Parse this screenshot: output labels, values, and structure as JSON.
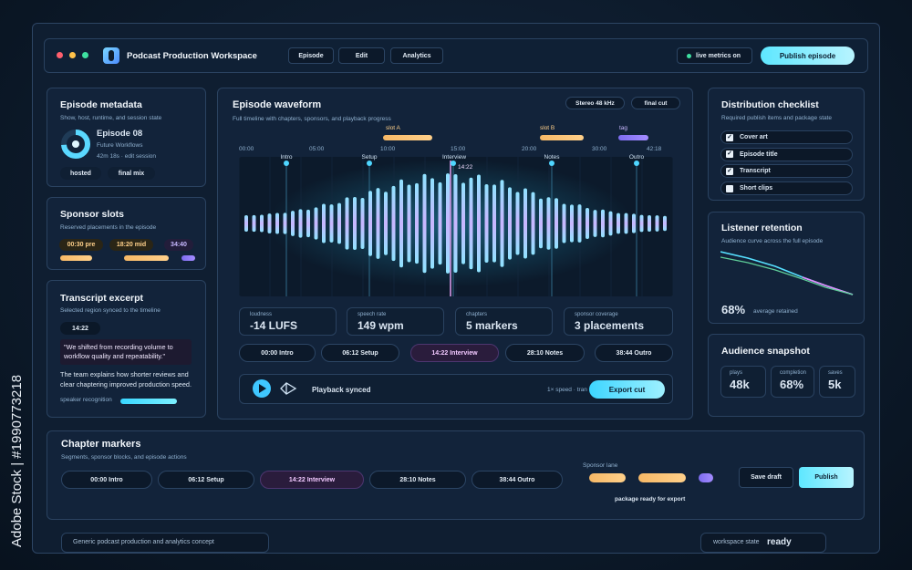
{
  "watermark": "Adobe Stock | #1990773218",
  "header": {
    "title": "Podcast Production Workspace",
    "tabs": [
      "Episode",
      "Edit",
      "Analytics"
    ],
    "status": "live metrics on",
    "action": "Publish episode"
  },
  "metadata": {
    "title": "Episode metadata",
    "subtitle": "Show, host, runtime, and session state",
    "episode": "Episode 08",
    "show": "Future Workflows",
    "runtime": "42m 18s · edit session",
    "tags": [
      "hosted",
      "final mix"
    ]
  },
  "sponsors": {
    "title": "Sponsor slots",
    "subtitle": "Reserved placements in the episode",
    "slots": [
      "00:30 pre",
      "18:20 mid",
      "34:40"
    ]
  },
  "transcript": {
    "title": "Transcript excerpt",
    "subtitle": "Selected region synced to the timeline",
    "timestamp": "14:22",
    "quote": "\"We shifted from recording volume to workflow quality and repeatability.\"",
    "body": "The team explains how shorter reviews and clear chaptering improved production speed.",
    "footer": "speaker recognition"
  },
  "waveform": {
    "title": "Episode waveform",
    "subtitle": "Full timeline with chapters, sponsors, and playback progress",
    "badges": [
      "Stereo 48 kHz",
      "final cut"
    ],
    "slots": [
      "slot A",
      "slot B",
      "tag"
    ],
    "time_ticks": [
      "00:00",
      "05:00",
      "10:00",
      "15:00",
      "20:00",
      "30:00",
      "42:18"
    ],
    "markers": [
      "Intro",
      "Setup",
      "Interview",
      "Notes",
      "Outro"
    ],
    "playhead": "14:22",
    "stats": [
      {
        "label": "loudness",
        "value": "-14 LUFS"
      },
      {
        "label": "speech rate",
        "value": "149 wpm"
      },
      {
        "label": "chapters",
        "value": "5 markers"
      },
      {
        "label": "sponsor coverage",
        "value": "3 placements"
      }
    ],
    "chapters": [
      "00:00 Intro",
      "06:12 Setup",
      "14:22 Interview",
      "28:10 Notes",
      "38:44 Outro"
    ],
    "playback": "Playback synced",
    "speed": "1× speed · tran",
    "export": "Export cut"
  },
  "checklist": {
    "title": "Distribution checklist",
    "subtitle": "Required publish items and package state",
    "items": [
      {
        "label": "Cover art",
        "checked": true
      },
      {
        "label": "Episode title",
        "checked": true
      },
      {
        "label": "Transcript",
        "checked": true
      },
      {
        "label": "Short clips",
        "checked": false
      }
    ]
  },
  "retention": {
    "title": "Listener retention",
    "subtitle": "Audience curve across the full episode",
    "value": "68%",
    "value_label": "average retained"
  },
  "snapshot": {
    "title": "Audience snapshot",
    "stats": [
      {
        "label": "plays",
        "value": "48k"
      },
      {
        "label": "completion",
        "value": "68%"
      },
      {
        "label": "saves",
        "value": "5k"
      }
    ]
  },
  "chapters": {
    "title": "Chapter markers",
    "subtitle": "Segments, sponsor blocks, and episode actions",
    "items": [
      "00:00 Intro",
      "06:12 Setup",
      "14:22 Interview",
      "28:10 Notes",
      "38:44 Outro"
    ],
    "sponsor_lane": "Sponsor lane",
    "status": "package ready for export",
    "actions": [
      "Save draft",
      "Publish"
    ]
  },
  "footer": {
    "note": "Generic podcast production and analytics concept",
    "state_label": "workspace state",
    "state": "ready"
  }
}
